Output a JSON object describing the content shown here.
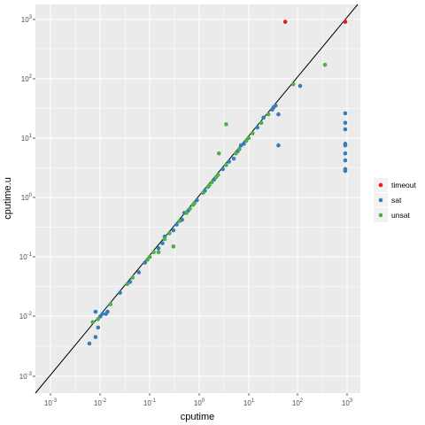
{
  "chart_data": {
    "type": "scatter",
    "xlabel": "cputime",
    "ylabel": "cputime.u",
    "scale": "log10",
    "xlim": [
      0.0005,
      1000
    ],
    "ylim": [
      0.0005,
      1000
    ],
    "x_ticks": [
      {
        "base": "10",
        "exp": "-3"
      },
      {
        "base": "10",
        "exp": "-2"
      },
      {
        "base": "10",
        "exp": "-1"
      },
      {
        "base": "10",
        "exp": "0"
      },
      {
        "base": "10",
        "exp": "1"
      },
      {
        "base": "10",
        "exp": "2"
      },
      {
        "base": "10",
        "exp": "3"
      }
    ],
    "y_ticks": [
      {
        "base": "10",
        "exp": "-3"
      },
      {
        "base": "10",
        "exp": "-2"
      },
      {
        "base": "10",
        "exp": "-1"
      },
      {
        "base": "10",
        "exp": "0"
      },
      {
        "base": "10",
        "exp": "1"
      },
      {
        "base": "10",
        "exp": "2"
      },
      {
        "base": "10",
        "exp": "3"
      }
    ],
    "reference_line": "y = x",
    "grid": true,
    "legend_position": "right",
    "series": [
      {
        "name": "timeout",
        "color": "#e41a1c",
        "points": [
          [
            55,
            900
          ],
          [
            900,
            900
          ]
        ]
      },
      {
        "name": "sat",
        "color": "#377eb8",
        "points": [
          [
            900,
            26
          ],
          [
            900,
            18
          ],
          [
            900,
            14
          ],
          [
            900,
            8
          ],
          [
            900,
            7.5
          ],
          [
            900,
            5.5
          ],
          [
            900,
            4.2
          ],
          [
            900,
            3
          ],
          [
            900,
            2.8
          ],
          [
            0.006,
            0.0035
          ],
          [
            0.008,
            0.0045
          ],
          [
            0.009,
            0.0065
          ],
          [
            0.008,
            0.012
          ],
          [
            0.011,
            0.011
          ],
          [
            0.013,
            0.011
          ],
          [
            0.01,
            0.01
          ],
          [
            0.014,
            0.012
          ],
          [
            0.025,
            0.025
          ],
          [
            0.04,
            0.038
          ],
          [
            0.06,
            0.055
          ],
          [
            0.08,
            0.08
          ],
          [
            0.15,
            0.14
          ],
          [
            0.18,
            0.17
          ],
          [
            0.2,
            0.22
          ],
          [
            0.3,
            0.28
          ],
          [
            0.35,
            0.35
          ],
          [
            0.45,
            0.42
          ],
          [
            0.5,
            0.55
          ],
          [
            0.6,
            0.6
          ],
          [
            0.9,
            0.9
          ],
          [
            1.3,
            1.3
          ],
          [
            2,
            2
          ],
          [
            3,
            3
          ],
          [
            4,
            4
          ],
          [
            5,
            4.5
          ],
          [
            6,
            6
          ],
          [
            7,
            7.5
          ],
          [
            8,
            8
          ],
          [
            15,
            15
          ],
          [
            20,
            22
          ],
          [
            30,
            30
          ],
          [
            32,
            33
          ],
          [
            35,
            35
          ],
          [
            40,
            7.5
          ],
          [
            40,
            25
          ],
          [
            110,
            75
          ]
        ]
      },
      {
        "name": "unsat",
        "color": "#4daf4a",
        "points": [
          [
            350,
            170
          ],
          [
            80,
            80
          ],
          [
            3.5,
            17
          ],
          [
            2.5,
            5.5
          ],
          [
            0.3,
            0.15
          ],
          [
            0.15,
            0.12
          ],
          [
            0.12,
            0.12
          ],
          [
            0.035,
            0.035
          ],
          [
            0.045,
            0.045
          ],
          [
            0.09,
            0.09
          ],
          [
            0.1,
            0.1
          ],
          [
            0.2,
            0.2
          ],
          [
            0.25,
            0.25
          ],
          [
            0.4,
            0.4
          ],
          [
            0.55,
            0.55
          ],
          [
            0.65,
            0.65
          ],
          [
            0.75,
            0.75
          ],
          [
            0.8,
            0.8
          ],
          [
            1.2,
            1.2
          ],
          [
            1.5,
            1.5
          ],
          [
            1.6,
            1.6
          ],
          [
            1.8,
            1.8
          ],
          [
            2.2,
            2.2
          ],
          [
            2.4,
            2.4
          ],
          [
            3.5,
            3.5
          ],
          [
            5.5,
            5.5
          ],
          [
            6.5,
            6.5
          ],
          [
            9,
            9
          ],
          [
            10,
            10
          ],
          [
            12,
            12
          ],
          [
            18,
            18
          ],
          [
            25,
            25
          ],
          [
            0.007,
            0.008
          ],
          [
            0.009,
            0.009
          ],
          [
            0.016,
            0.016
          ]
        ]
      }
    ]
  }
}
